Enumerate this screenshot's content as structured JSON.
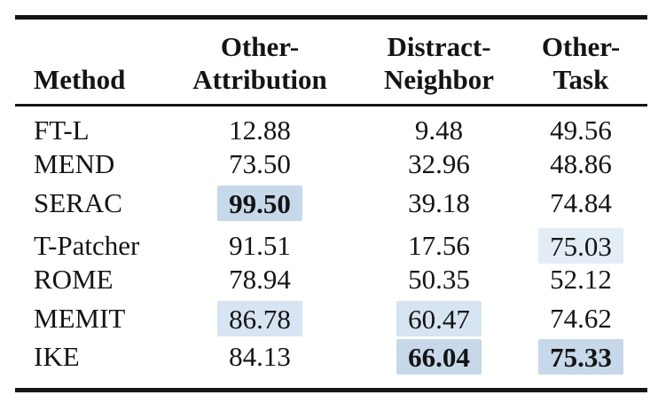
{
  "table": {
    "header": {
      "method": "Method",
      "col2_line1": "Other-",
      "col2_line2": "Attribution",
      "col3_line1": "Distract-",
      "col3_line2": "Neighbor",
      "col4_line1": "Other-",
      "col4_line2": "Task"
    },
    "rows": [
      {
        "method": "FT-L",
        "other_attribution": "12.88",
        "distract_neighbor": "9.48",
        "other_task": "49.56",
        "highlights": {}
      },
      {
        "method": "MEND",
        "other_attribution": "73.50",
        "distract_neighbor": "32.96",
        "other_task": "48.86",
        "highlights": {}
      },
      {
        "method": "SERAC",
        "other_attribution": "99.50",
        "distract_neighbor": "39.18",
        "other_task": "74.84",
        "highlights": {
          "other_attribution": {
            "tone": "strong",
            "bold": true
          }
        }
      },
      {
        "method": "T-Patcher",
        "other_attribution": "91.51",
        "distract_neighbor": "17.56",
        "other_task": "75.03",
        "highlights": {
          "other_task": {
            "tone": "light",
            "bold": false
          }
        }
      },
      {
        "method": "ROME",
        "other_attribution": "78.94",
        "distract_neighbor": "50.35",
        "other_task": "52.12",
        "highlights": {}
      },
      {
        "method": "MEMIT",
        "other_attribution": "86.78",
        "distract_neighbor": "60.47",
        "other_task": "74.62",
        "highlights": {
          "other_attribution": {
            "tone": "medium",
            "bold": false
          },
          "distract_neighbor": {
            "tone": "medium",
            "bold": false
          }
        }
      },
      {
        "method": "IKE",
        "other_attribution": "84.13",
        "distract_neighbor": "66.04",
        "other_task": "75.33",
        "highlights": {
          "distract_neighbor": {
            "tone": "strong",
            "bold": true
          },
          "other_task": {
            "tone": "strong",
            "bold": true
          }
        }
      }
    ]
  },
  "highlight_colors": {
    "strong": "#c6d8e9",
    "medium": "#d7e4f1",
    "light": "#e2edf6"
  },
  "rule_color": "#161616",
  "chart_data": {
    "type": "table",
    "columns": [
      "Method",
      "Other-Attribution",
      "Distract-Neighbor",
      "Other-Task"
    ],
    "rows": [
      [
        "FT-L",
        12.88,
        9.48,
        49.56
      ],
      [
        "MEND",
        73.5,
        32.96,
        48.86
      ],
      [
        "SERAC",
        99.5,
        39.18,
        74.84
      ],
      [
        "T-Patcher",
        91.51,
        17.56,
        75.03
      ],
      [
        "ROME",
        78.94,
        50.35,
        52.12
      ],
      [
        "MEMIT",
        86.78,
        60.47,
        74.62
      ],
      [
        "IKE",
        84.13,
        66.04,
        75.33
      ]
    ]
  }
}
